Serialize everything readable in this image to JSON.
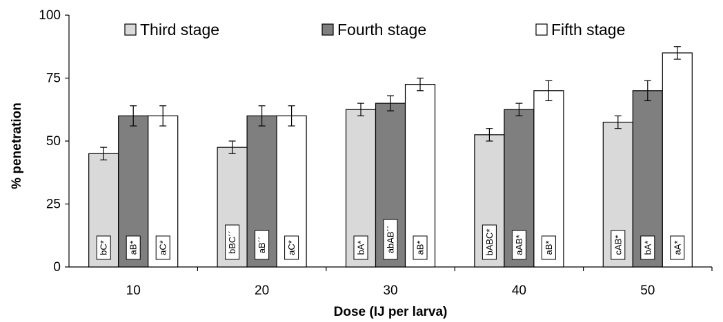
{
  "chart_data": {
    "type": "bar",
    "xlabel": "Dose (IJ per larva)",
    "ylabel": "% penetration",
    "ylim": [
      0,
      100
    ],
    "yticks": [
      "0",
      "25",
      "50",
      "75",
      "100"
    ],
    "categories": [
      "10",
      "20",
      "30",
      "40",
      "50"
    ],
    "grid": false,
    "legend_position": "top",
    "series": [
      {
        "name": "Third stage",
        "color": "#d9d9d9",
        "values": [
          45,
          47.5,
          62.5,
          52.5,
          57.5
        ],
        "errors": [
          2.5,
          2.5,
          2.5,
          2.5,
          2.5
        ],
        "labels": [
          "bC*",
          "bBC´´",
          "bA*",
          "bABC*",
          "cAB*"
        ]
      },
      {
        "name": "Fourth stage",
        "color": "#7f7f7f",
        "values": [
          60,
          60,
          65,
          62.5,
          70
        ],
        "errors": [
          4,
          4,
          3,
          2.5,
          4
        ],
        "labels": [
          "aB*",
          "aB´´",
          "abAB´´",
          "aAB*",
          "bA*"
        ]
      },
      {
        "name": "Fifth stage",
        "color": "#ffffff",
        "values": [
          60,
          60,
          72.5,
          70,
          85
        ],
        "errors": [
          4,
          4,
          2.5,
          4,
          2.5
        ],
        "labels": [
          "aC*",
          "aC*",
          "aB*",
          "aB*",
          "aA*"
        ]
      }
    ]
  }
}
